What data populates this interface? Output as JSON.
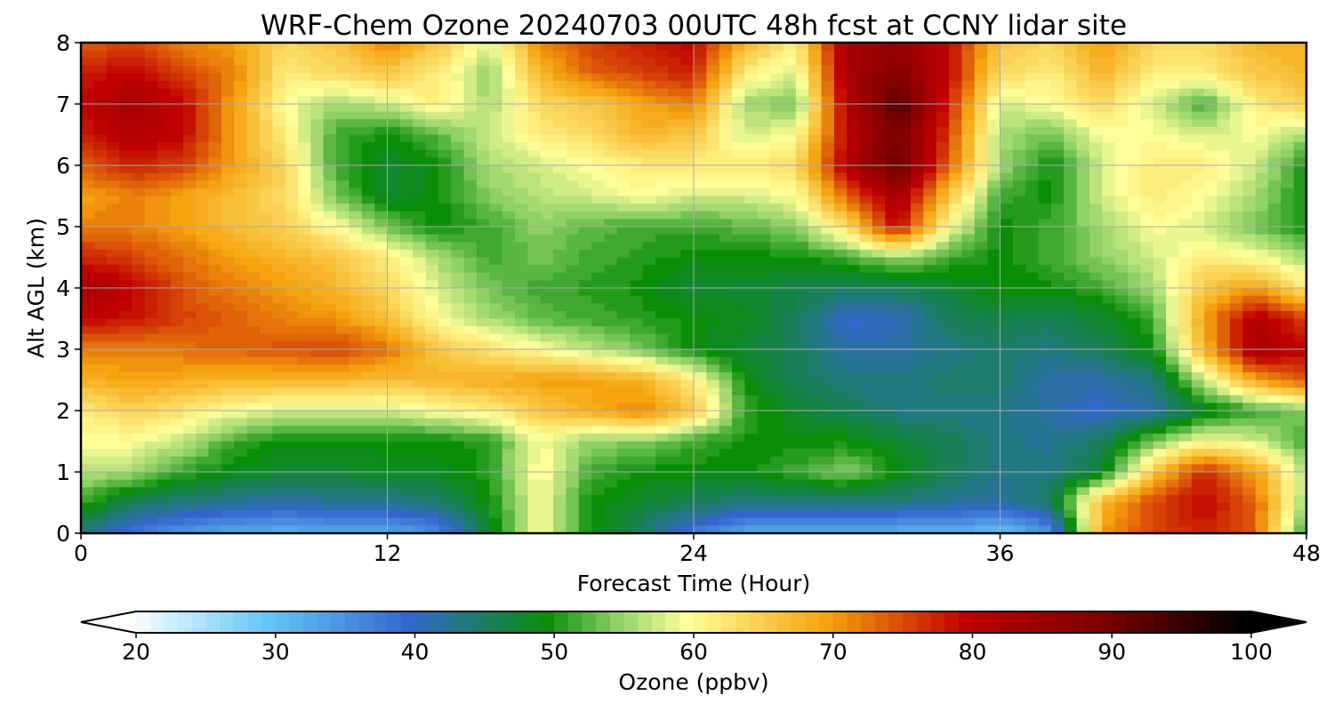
{
  "chart_data": {
    "type": "heatmap",
    "title": "WRF-Chem Ozone  20240703 00UTC 48h fcst at CCNY lidar site",
    "xlabel": "Forecast Time (Hour)",
    "ylabel": "Alt AGL (km)",
    "xlim": [
      0,
      48
    ],
    "ylim": [
      0,
      8
    ],
    "xticks": [
      "0",
      "12",
      "24",
      "36",
      "48"
    ],
    "yticks": [
      "0",
      "1",
      "2",
      "3",
      "4",
      "5",
      "6",
      "7",
      "8"
    ],
    "grid": true,
    "x_hours": [
      0,
      2,
      4,
      6,
      8,
      10,
      12,
      14,
      16,
      18,
      20,
      22,
      24,
      26,
      28,
      30,
      32,
      34,
      36,
      38,
      40,
      42,
      44,
      46,
      48
    ],
    "y_km": [
      0,
      0.5,
      1,
      1.5,
      2,
      2.5,
      3,
      3.5,
      4,
      4.5,
      5,
      5.5,
      6,
      6.5,
      7,
      7.5,
      8
    ],
    "ozone_ppbv": [
      [
        44,
        38,
        35,
        33,
        32,
        33,
        33,
        36,
        48,
        60,
        50,
        45,
        38,
        33,
        32,
        32,
        32,
        32,
        30,
        35,
        70,
        76,
        78,
        74,
        50
      ],
      [
        52,
        46,
        44,
        43,
        42,
        43,
        43,
        45,
        50,
        60,
        50,
        48,
        46,
        44,
        44,
        44,
        44,
        43,
        42,
        46,
        68,
        76,
        80,
        74,
        55
      ],
      [
        57,
        56,
        52,
        49,
        48,
        48,
        49,
        49,
        51,
        61,
        52,
        50,
        50,
        50,
        52,
        55,
        50,
        46,
        44,
        44,
        48,
        66,
        78,
        70,
        56
      ],
      [
        60,
        60,
        57,
        52,
        50,
        50,
        50,
        50,
        51,
        60,
        55,
        55,
        52,
        50,
        50,
        50,
        48,
        46,
        44,
        43,
        46,
        54,
        60,
        58,
        52
      ],
      [
        62,
        65,
        63,
        60,
        58,
        58,
        58,
        60,
        62,
        66,
        69,
        72,
        66,
        52,
        48,
        46,
        44,
        44,
        44,
        42,
        40,
        42,
        48,
        52,
        55
      ],
      [
        68,
        70,
        69,
        68,
        68,
        68,
        67,
        68,
        69,
        70,
        70,
        68,
        62,
        50,
        46,
        44,
        44,
        45,
        45,
        42,
        42,
        44,
        58,
        70,
        75
      ],
      [
        72,
        72,
        73,
        74,
        75,
        76,
        73,
        66,
        63,
        60,
        57,
        54,
        50,
        48,
        46,
        42,
        42,
        44,
        45,
        44,
        46,
        50,
        68,
        84,
        80
      ],
      [
        80,
        79,
        76,
        74,
        72,
        71,
        67,
        60,
        56,
        53,
        52,
        51,
        50,
        49,
        46,
        40,
        41,
        46,
        47,
        46,
        48,
        52,
        70,
        82,
        76
      ],
      [
        84,
        80,
        75,
        72,
        70,
        68,
        64,
        58,
        54,
        52,
        51,
        50,
        48,
        48,
        47,
        46,
        46,
        48,
        50,
        50,
        52,
        56,
        66,
        70,
        62
      ],
      [
        78,
        76,
        73,
        70,
        68,
        66,
        62,
        56,
        52,
        54,
        52,
        51,
        50,
        50,
        50,
        52,
        56,
        52,
        50,
        52,
        55,
        58,
        62,
        60,
        56
      ],
      [
        72,
        72,
        70,
        67,
        65,
        60,
        54,
        50,
        52,
        55,
        53,
        52,
        52,
        53,
        55,
        64,
        80,
        60,
        50,
        52,
        56,
        60,
        58,
        54,
        50
      ],
      [
        70,
        72,
        70,
        67,
        64,
        54,
        48,
        50,
        55,
        57,
        58,
        60,
        58,
        58,
        60,
        74,
        84,
        66,
        52,
        50,
        58,
        62,
        60,
        56,
        50
      ],
      [
        74,
        78,
        76,
        70,
        64,
        52,
        48,
        50,
        56,
        58,
        60,
        62,
        62,
        62,
        64,
        82,
        92,
        74,
        56,
        50,
        58,
        62,
        62,
        58,
        50
      ],
      [
        78,
        82,
        80,
        70,
        62,
        52,
        50,
        53,
        58,
        62,
        64,
        68,
        66,
        58,
        60,
        80,
        90,
        76,
        56,
        54,
        60,
        60,
        58,
        60,
        56
      ],
      [
        80,
        84,
        80,
        70,
        60,
        56,
        58,
        62,
        56,
        64,
        66,
        70,
        72,
        56,
        54,
        82,
        94,
        78,
        58,
        60,
        64,
        58,
        52,
        62,
        65
      ],
      [
        78,
        80,
        76,
        72,
        62,
        64,
        66,
        62,
        55,
        68,
        74,
        76,
        78,
        62,
        58,
        84,
        88,
        80,
        64,
        62,
        68,
        62,
        62,
        66,
        68
      ],
      [
        74,
        76,
        72,
        70,
        64,
        66,
        72,
        66,
        58,
        72,
        76,
        78,
        80,
        68,
        62,
        84,
        86,
        80,
        66,
        64,
        70,
        64,
        64,
        68,
        68
      ]
    ],
    "colorbar": {
      "label": "Ozone  (ppbv)",
      "min": 20,
      "max": 100,
      "extend": "both",
      "ticks": [
        "20",
        "30",
        "40",
        "50",
        "60",
        "70",
        "80",
        "90",
        "100"
      ],
      "stops": [
        {
          "v": 20,
          "c": "#ffffff"
        },
        {
          "v": 30,
          "c": "#63c6f5"
        },
        {
          "v": 40,
          "c": "#3566cf"
        },
        {
          "v": 45,
          "c": "#1d7c6c"
        },
        {
          "v": 50,
          "c": "#0a8e0a"
        },
        {
          "v": 55,
          "c": "#8fd067"
        },
        {
          "v": 60,
          "c": "#ffff99"
        },
        {
          "v": 70,
          "c": "#f5a30f"
        },
        {
          "v": 80,
          "c": "#c00000"
        },
        {
          "v": 90,
          "c": "#7a0000"
        },
        {
          "v": 100,
          "c": "#000000"
        }
      ]
    }
  }
}
